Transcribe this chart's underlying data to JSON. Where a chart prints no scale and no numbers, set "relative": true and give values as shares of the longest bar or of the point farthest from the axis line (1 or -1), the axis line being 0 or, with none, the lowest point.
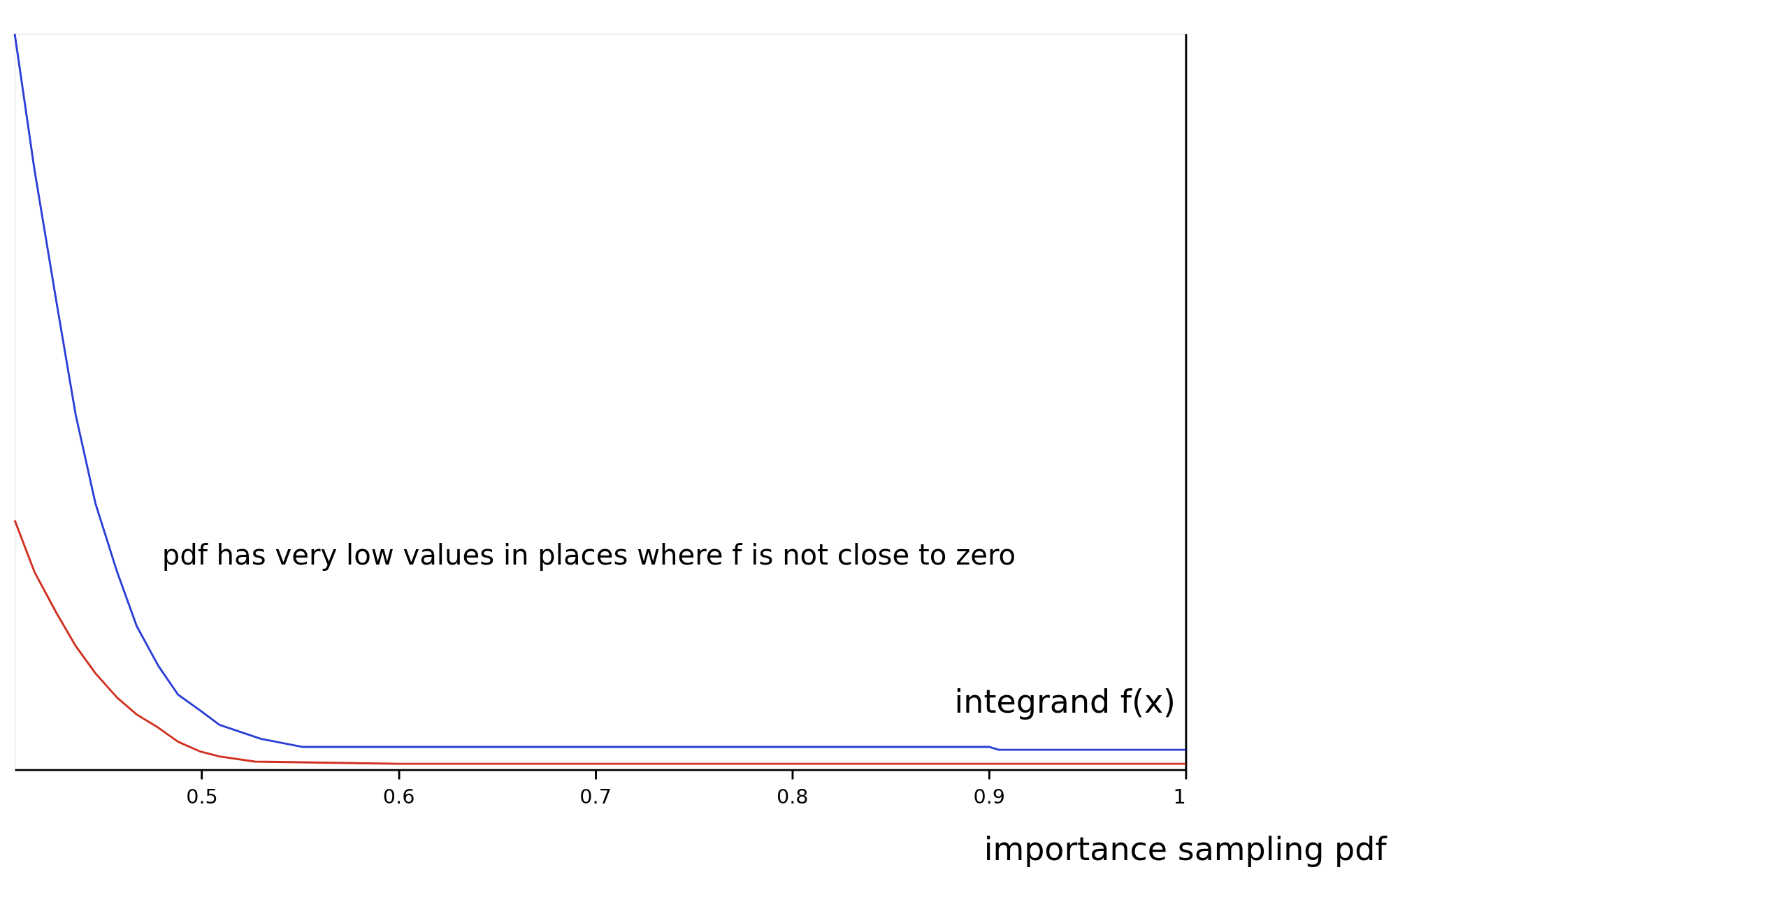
{
  "chart_data": {
    "type": "line",
    "relative": true,
    "annotations": [
      "pdf has very low values in places where f is not close to zero"
    ],
    "xlim": [
      0.405,
      1.0
    ],
    "xticks": [
      0.5,
      0.6,
      0.7,
      0.8,
      0.9,
      1
    ],
    "series": [
      {
        "name": "integrand f(x)",
        "color": "#2b3fd6",
        "x": [
          0.405,
          0.415,
          0.426,
          0.436,
          0.446,
          0.457,
          0.467,
          0.478,
          0.488,
          0.499,
          0.509,
          0.53,
          0.551,
          0.6,
          0.7,
          0.8,
          0.9,
          0.905,
          1.0
        ],
        "values": [
          1,
          0.816,
          0.639,
          0.482,
          0.362,
          0.269,
          0.195,
          0.141,
          0.102,
          0.081,
          0.061,
          0.042,
          0.031,
          0.031,
          0.031,
          0.031,
          0.031,
          0.027,
          0.027
        ]
      },
      {
        "name": "importance sampling pdf",
        "color": "#d03020",
        "x": [
          0.405,
          0.415,
          0.426,
          0.436,
          0.446,
          0.457,
          0.467,
          0.478,
          0.488,
          0.499,
          0.509,
          0.527,
          0.6,
          0.7,
          0.8,
          0.9,
          1.0
        ],
        "values": [
          0.339,
          0.269,
          0.214,
          0.168,
          0.131,
          0.098,
          0.075,
          0.057,
          0.038,
          0.025,
          0.018,
          0.011,
          0.008,
          0.008,
          0.008,
          0.008,
          0.008
        ]
      }
    ]
  }
}
